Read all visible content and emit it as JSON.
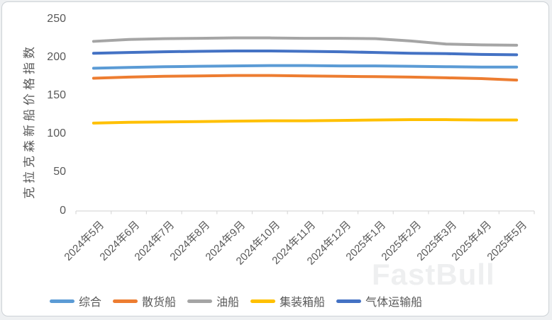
{
  "watermark": "FastBull",
  "chart_data": {
    "type": "line",
    "title": "",
    "xlabel": "",
    "ylabel": "克拉克森新船价格指数",
    "ylim": [
      0,
      250
    ],
    "yticks": [
      0,
      50,
      100,
      150,
      200,
      250
    ],
    "grid": false,
    "legend_position": "bottom",
    "axis_color": "#d9d9d9",
    "text_color": "#595959",
    "categories": [
      "2024年5月",
      "2024年6月",
      "2024年7月",
      "2024年8月",
      "2024年9月",
      "2024年10月",
      "2024年11月",
      "2024年12月",
      "2025年1月",
      "2025年2月",
      "2025年3月",
      "2025年4月",
      "2025年5月"
    ],
    "series": [
      {
        "name": "综合",
        "color": "#5B9BD5",
        "values": [
          186,
          187,
          188,
          188.5,
          189,
          189.5,
          189.5,
          189,
          189,
          188.5,
          188,
          187.5,
          187.5
        ]
      },
      {
        "name": "散货船",
        "color": "#ED7D31",
        "values": [
          173,
          174.5,
          175.5,
          176,
          176.5,
          176.5,
          176,
          175.5,
          175,
          174.5,
          173.5,
          172.5,
          170.5
        ]
      },
      {
        "name": "油船",
        "color": "#A5A5A5",
        "values": [
          221,
          223.5,
          224.5,
          225,
          225.5,
          225.5,
          225,
          225,
          224.5,
          221.5,
          217.5,
          216.5,
          216
        ]
      },
      {
        "name": "集装箱船",
        "color": "#FFC000",
        "values": [
          114.5,
          115.5,
          116,
          116.5,
          117,
          117.5,
          117.5,
          118,
          118.5,
          119,
          119,
          118.5,
          118.5
        ]
      },
      {
        "name": "气体运输船",
        "color": "#4472C4",
        "values": [
          205.5,
          206.5,
          207.5,
          208,
          208.5,
          208.5,
          208,
          207.5,
          206.5,
          205.5,
          205,
          204,
          203.5
        ]
      }
    ]
  }
}
